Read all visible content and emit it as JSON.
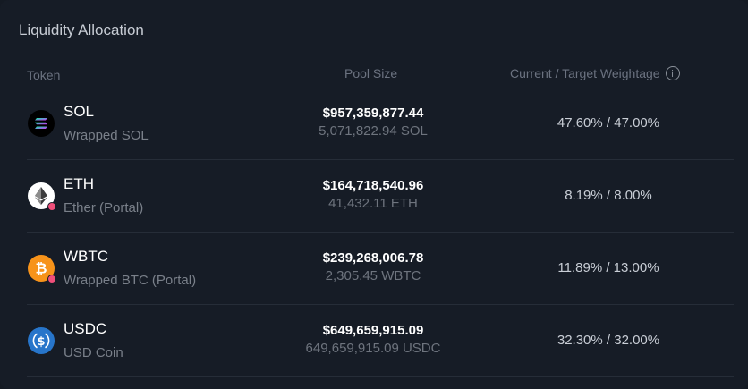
{
  "panel": {
    "title": "Liquidity Allocation"
  },
  "table": {
    "headers": {
      "token": "Token",
      "pool_size": "Pool Size",
      "weightage": "Current / Target Weightage",
      "info_glyph": "i"
    },
    "rows": [
      {
        "symbol": "SOL",
        "name": "Wrapped SOL",
        "pool_usd": "$957,359,877.44",
        "pool_amount": "5,071,822.94 SOL",
        "weightage": "47.60% / 47.00%",
        "icon": "sol-icon",
        "icon_color": "#000000"
      },
      {
        "symbol": "ETH",
        "name": "Ether (Portal)",
        "pool_usd": "$164,718,540.96",
        "pool_amount": "41,432.11 ETH",
        "weightage": "8.19% / 8.00%",
        "icon": "eth-icon",
        "icon_color": "#ffffff"
      },
      {
        "symbol": "WBTC",
        "name": "Wrapped BTC (Portal)",
        "pool_usd": "$239,268,006.78",
        "pool_amount": "2,305.45 WBTC",
        "weightage": "11.89% / 13.00%",
        "icon": "btc-icon",
        "icon_color": "#f7931a"
      },
      {
        "symbol": "USDC",
        "name": "USD Coin",
        "pool_usd": "$649,659,915.09",
        "pool_amount": "649,659,915.09 USDC",
        "weightage": "32.30% / 32.00%",
        "icon": "usdc-icon",
        "icon_color": "#2775ca",
        "glyph": "$"
      }
    ]
  }
}
